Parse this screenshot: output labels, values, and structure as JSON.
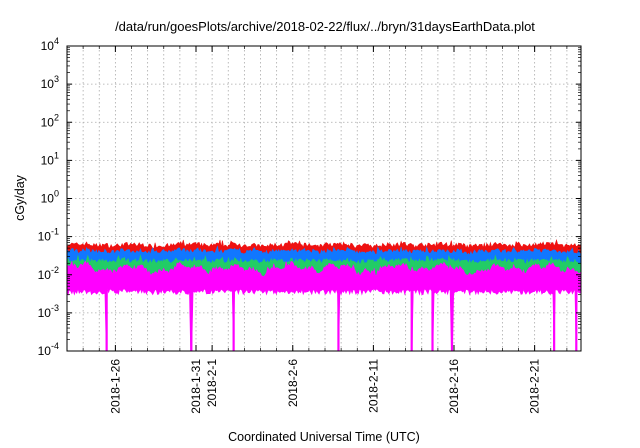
{
  "chart_data": {
    "type": "area",
    "title": "/data/run/goesPlots/archive/2018-02-22/flux/../bryn/31daysEarthData.plot",
    "xlabel": "Coordinated Universal Time (UTC)",
    "ylabel": "cGy/day",
    "y_scale": "log",
    "ylim": [
      0.0001,
      10000
    ],
    "xlim": [
      "2018-01-23",
      "2018-02-23 21:00"
    ],
    "grid": true,
    "legend": "none",
    "y_ticks": [
      {
        "base": "10",
        "exp": "-4",
        "value": 0.0001
      },
      {
        "base": "10",
        "exp": "-3",
        "value": 0.001
      },
      {
        "base": "10",
        "exp": "-2",
        "value": 0.01
      },
      {
        "base": "10",
        "exp": "-1",
        "value": 0.1
      },
      {
        "base": "10",
        "exp": "0",
        "value": 1
      },
      {
        "base": "10",
        "exp": "1",
        "value": 10
      },
      {
        "base": "10",
        "exp": "2",
        "value": 100
      },
      {
        "base": "10",
        "exp": "3",
        "value": 1000
      },
      {
        "base": "10",
        "exp": "4",
        "value": 10000
      }
    ],
    "x_ticks": [
      {
        "label": "2018-1-26",
        "date": "2018-01-26"
      },
      {
        "label": "2018-1-31",
        "date": "2018-01-31"
      },
      {
        "label": "2018-2-1",
        "date": "2018-02-01"
      },
      {
        "label": "2018-2-6",
        "date": "2018-02-06"
      },
      {
        "label": "2018-2-11",
        "date": "2018-02-11"
      },
      {
        "label": "2018-2-16",
        "date": "2018-02-16"
      },
      {
        "label": "2018-2-21",
        "date": "2018-02-21"
      }
    ],
    "minor_grid_dates": [
      "2018-01-23",
      "2018-01-24",
      "2018-01-25",
      "2018-01-26",
      "2018-01-27",
      "2018-01-28",
      "2018-01-29",
      "2018-01-30",
      "2018-01-31",
      "2018-02-01",
      "2018-02-02",
      "2018-02-03",
      "2018-02-04",
      "2018-02-05",
      "2018-02-06",
      "2018-02-07",
      "2018-02-08",
      "2018-02-09",
      "2018-02-10",
      "2018-02-11",
      "2018-02-12",
      "2018-02-13",
      "2018-02-14",
      "2018-02-15",
      "2018-02-16",
      "2018-02-17",
      "2018-02-18",
      "2018-02-19",
      "2018-02-20",
      "2018-02-21",
      "2018-02-22",
      "2018-02-23"
    ],
    "series": [
      {
        "color": "#ee1111",
        "typical_peak": 0.065,
        "typical_floor": 0.045
      },
      {
        "color": "#1177ff",
        "typical_peak": 0.045,
        "typical_floor": 0.03
      },
      {
        "color": "#22cc66",
        "typical_peak": 0.025,
        "typical_floor": 0.018
      },
      {
        "color": "#ff00ff",
        "typical_peak": 0.02,
        "typical_floor": 0.0045
      }
    ],
    "magenta_dropouts": [
      "2018-01-25 11:00",
      "2018-01-30 17:00",
      "2018-02-02 08:00",
      "2018-02-08 20:00",
      "2018-02-13 09:00",
      "2018-02-14 16:00",
      "2018-02-15 21:00",
      "2018-02-22 05:00",
      "2018-02-23 14:00"
    ],
    "dropout_floor": 0.0001
  }
}
